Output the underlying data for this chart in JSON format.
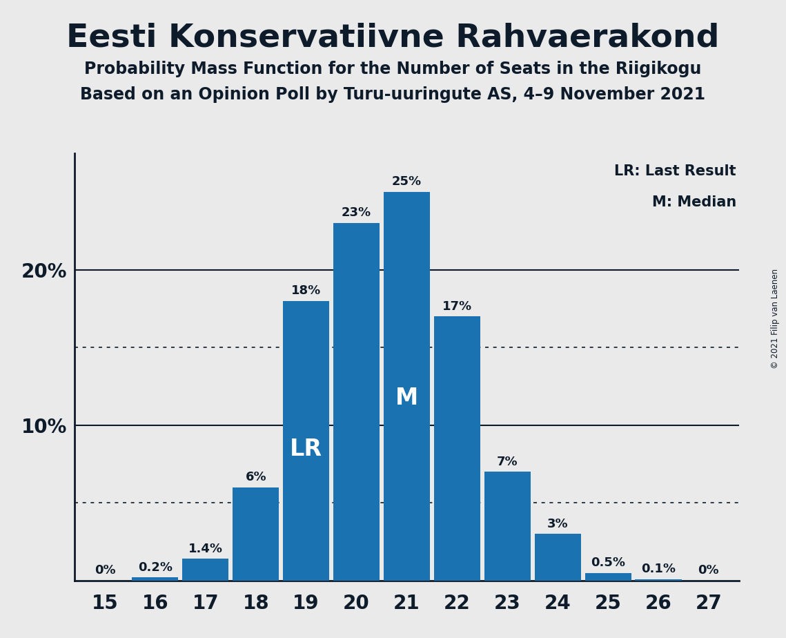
{
  "title": "Eesti Konservatiivne Rahvaerakond",
  "subtitle1": "Probability Mass Function for the Number of Seats in the Riigikogu",
  "subtitle2": "Based on an Opinion Poll by Turu-uuringute AS, 4–9 November 2021",
  "copyright": "© 2021 Filip van Laenen",
  "seats": [
    15,
    16,
    17,
    18,
    19,
    20,
    21,
    22,
    23,
    24,
    25,
    26,
    27
  ],
  "probabilities": [
    0.0,
    0.2,
    1.4,
    6.0,
    18.0,
    23.0,
    25.0,
    17.0,
    7.0,
    3.0,
    0.5,
    0.1,
    0.0
  ],
  "bar_color": "#1a72b0",
  "background_color": "#EAEAEA",
  "text_color": "#0d1b2a",
  "lr_seat": 19,
  "median_seat": 21,
  "yticks": [
    10,
    20
  ],
  "dotted_lines": [
    5.0,
    15.0
  ],
  "ylim": [
    0,
    27.5
  ],
  "bar_labels": [
    "0%",
    "0.2%",
    "1.4%",
    "6%",
    "18%",
    "23%",
    "25%",
    "17%",
    "7%",
    "3%",
    "0.5%",
    "0.1%",
    "0%"
  ],
  "legend_lr": "LR: Last Result",
  "legend_m": "M: Median",
  "bar_width": 0.92
}
